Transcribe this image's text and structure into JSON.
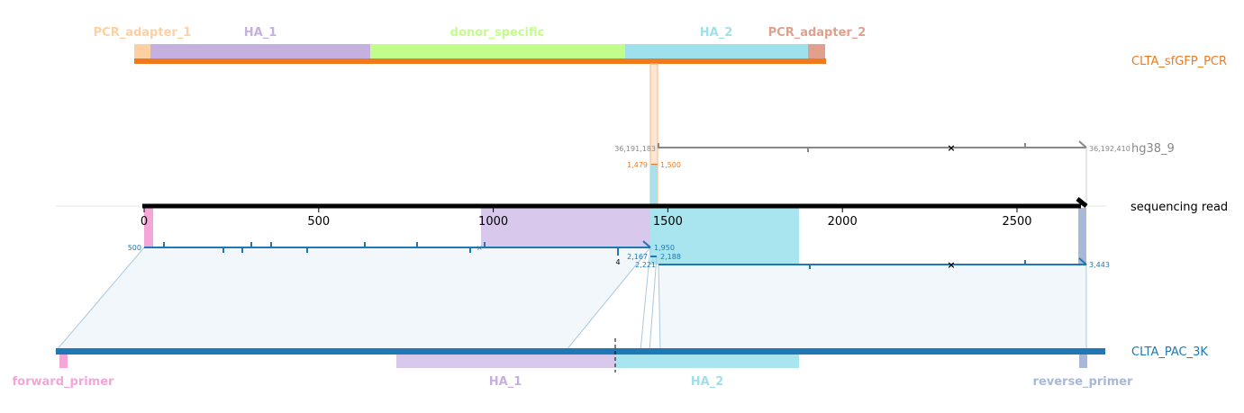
{
  "colors": {
    "orange": "#f07a1b",
    "grey": "#888888",
    "blue": "#1f77b4",
    "black": "#000000",
    "pcr_adapter_1": "#fdd0a2",
    "ha_1": "#c5b0e0",
    "donor_specific": "#c2ff8a",
    "ha_2": "#9ee0ec",
    "pcr_adapter_2": "#e0a08c",
    "forward_primer": "#f5a6d8",
    "reverse_primer": "#a9b8d6",
    "read_ha_1": "#d8c8eb",
    "read_ha_2": "#a9e5ee",
    "fill_blue": "#e8f0f7"
  },
  "read": {
    "label": "sequencing read",
    "axis_range": [
      0,
      2700
    ],
    "ticks": [
      0,
      500,
      1000,
      1500,
      2000,
      2500
    ]
  },
  "tracks": {
    "donor": {
      "label": "CLTA_sfGFP_PCR",
      "features": [
        {
          "name": "PCR_adapter_1",
          "label": "PCR_adapter_1",
          "color_key": "pcr_adapter_1"
        },
        {
          "name": "HA_1",
          "label": "HA_1",
          "color_key": "ha_1"
        },
        {
          "name": "donor_specific",
          "label": "donor_specific",
          "color_key": "donor_specific"
        },
        {
          "name": "HA_2",
          "label": "HA_2",
          "color_key": "ha_2"
        },
        {
          "name": "PCR_adapter_2",
          "label": "PCR_adapter_2",
          "color_key": "pcr_adapter_2"
        }
      ],
      "alignment": {
        "read_start": "1,479",
        "read_end": "1,500"
      }
    },
    "genome": {
      "label": "hg38_9",
      "ref_start": "36,191,183",
      "ref_end": "36,192,410"
    },
    "target": {
      "label": "CLTA_PAC_3K",
      "features": [
        {
          "name": "forward_primer",
          "label": "forward_primer",
          "color_key": "forward_primer"
        },
        {
          "name": "HA_1",
          "label": "HA_1",
          "color_key": "ha_1"
        },
        {
          "name": "HA_2",
          "label": "HA_2",
          "color_key": "ha_2"
        },
        {
          "name": "reverse_primer",
          "label": "reverse_primer",
          "color_key": "reverse_primer"
        }
      ],
      "alignment_1": {
        "ref_start": "500",
        "ref_end": "1,950",
        "read_end": "4"
      },
      "alignment_2": {
        "ref_start": "2,221",
        "ref_end": "3,443",
        "ins_start": "2,167",
        "ins_end": "2,188"
      }
    }
  }
}
